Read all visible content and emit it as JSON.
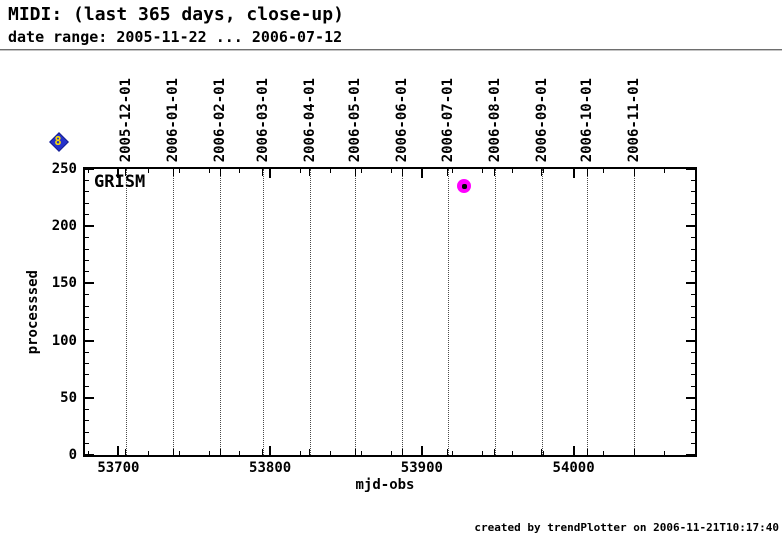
{
  "header": {
    "title": "MIDI: (last 365 days, close-up)",
    "subtitle": "date range: 2005-11-22 ... 2006-07-12"
  },
  "corner_marker": {
    "symbol": "8",
    "shape": "diamond",
    "fill_color": "#2633cc",
    "symbol_color": "#ffdf00"
  },
  "footer": {
    "credit": "created by trendPlotter on 2006-11-21T10:17:40"
  },
  "chart_data": {
    "type": "scatter",
    "series_label": "GRISM",
    "xlabel": "mjd-obs",
    "ylabel": "processsed",
    "xlim": [
      53678,
      54080
    ],
    "ylim": [
      0,
      250
    ],
    "x_major_ticks": [
      53700,
      53800,
      53900,
      54000
    ],
    "x_minor_step": 20,
    "y_major_ticks": [
      0,
      50,
      100,
      150,
      200,
      250
    ],
    "y_minor_step": 10,
    "grid": "vertical dotted gridlines at month starts",
    "legend_position": "none",
    "month_gridlines": [
      {
        "mjd": 53705,
        "label": "2005-12-01"
      },
      {
        "mjd": 53736,
        "label": "2006-01-01"
      },
      {
        "mjd": 53767,
        "label": "2006-02-01"
      },
      {
        "mjd": 53795,
        "label": "2006-03-01"
      },
      {
        "mjd": 53826,
        "label": "2006-04-01"
      },
      {
        "mjd": 53856,
        "label": "2006-05-01"
      },
      {
        "mjd": 53887,
        "label": "2006-06-01"
      },
      {
        "mjd": 53917,
        "label": "2006-07-01"
      },
      {
        "mjd": 53948,
        "label": "2006-08-01"
      },
      {
        "mjd": 53979,
        "label": "2006-09-01"
      },
      {
        "mjd": 54009,
        "label": "2006-10-01"
      },
      {
        "mjd": 54040,
        "label": "2006-11-01"
      }
    ],
    "points": [
      {
        "x": 53928,
        "y": 235,
        "marker_color": "#ff00ff",
        "core_color": "#000000"
      }
    ]
  }
}
